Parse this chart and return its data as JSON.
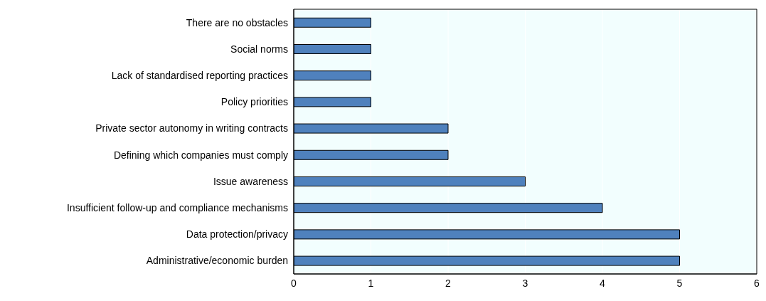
{
  "chart_data": {
    "type": "bar",
    "orientation": "horizontal",
    "categories": [
      "There are no obstacles",
      "Social norms",
      "Lack of standardised reporting practices",
      "Policy priorities",
      "Private sector autonomy in writing contracts",
      "Defining which companies must comply",
      "Issue awareness",
      "Insufficient follow-up and compliance mechanisms",
      "Data protection/privacy",
      "Administrative/economic burden"
    ],
    "values": [
      1,
      1,
      1,
      1,
      2,
      2,
      3,
      4,
      5,
      5
    ],
    "color": "#4f81bd",
    "xlim": [
      0,
      6
    ],
    "xticks": [
      0,
      1,
      2,
      3,
      4,
      5,
      6
    ],
    "grid": "x"
  }
}
